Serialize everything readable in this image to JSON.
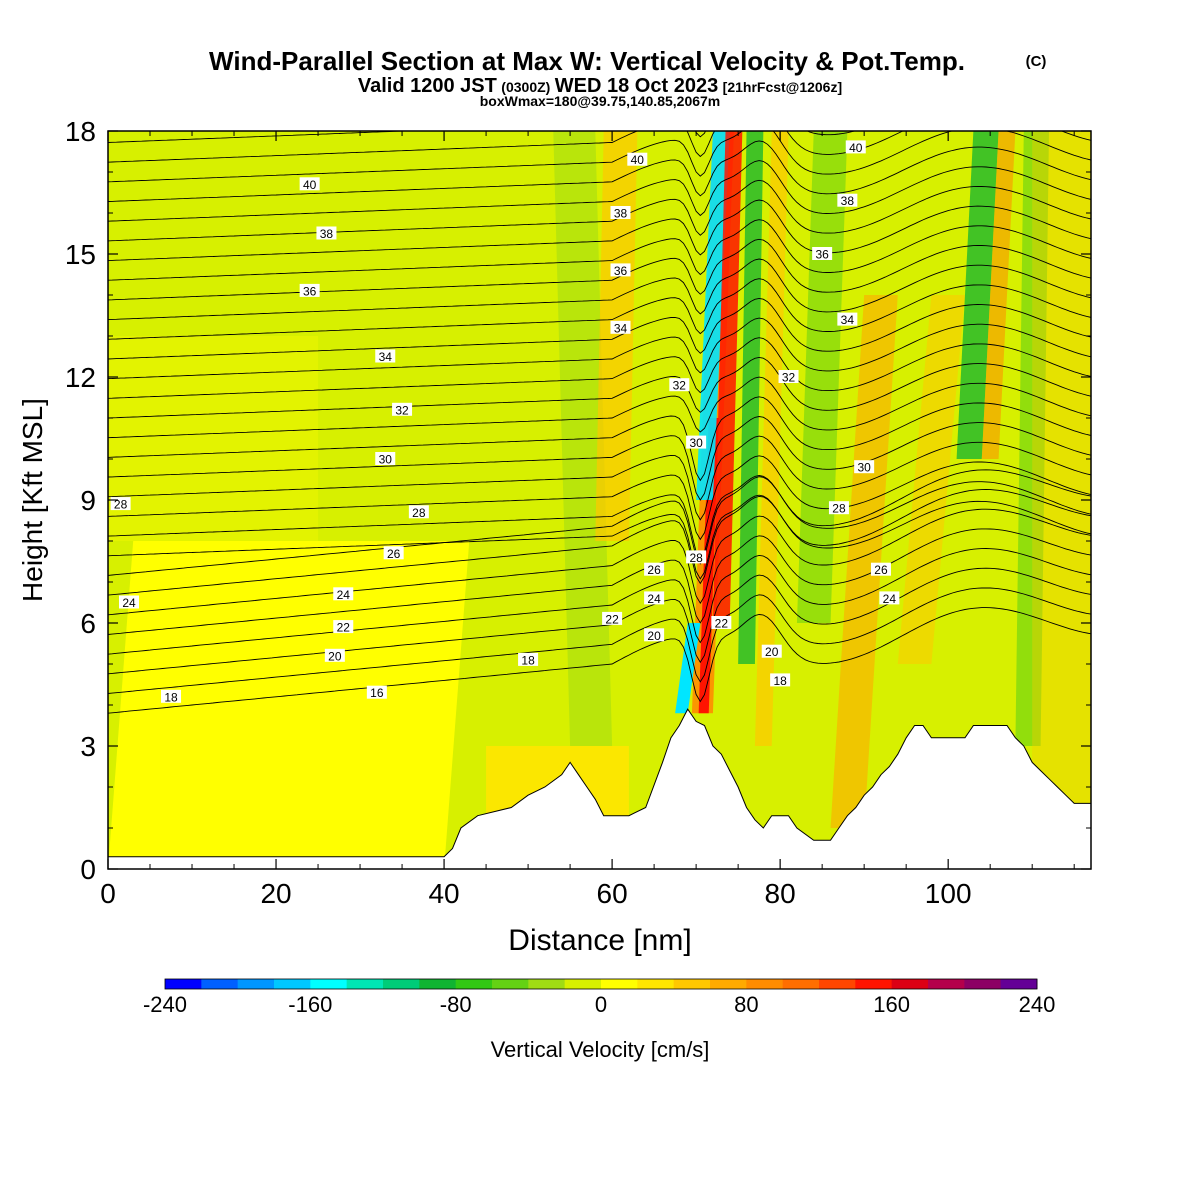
{
  "title": {
    "main": "Wind-Parallel Section at Max W: Vertical Velocity & Pot.Temp.",
    "copyright": "(C)",
    "line2_a": "Valid 1200 JST",
    "line2_b": "(0300Z)",
    "line2_c": "WED 18 Oct 2023",
    "line2_d": "[21hrFcst@1206z]",
    "line3": "boxWmax=180@39.75,140.85,2067m"
  },
  "chart_data": {
    "type": "heatmap",
    "xlabel": "Distance [nm]",
    "ylabel": "Height [Kft MSL]",
    "xlim": [
      0,
      117
    ],
    "ylim": [
      0,
      18
    ],
    "x_ticks": [
      0,
      20,
      40,
      60,
      80,
      100
    ],
    "y_ticks": [
      0,
      3,
      6,
      9,
      12,
      15,
      18
    ],
    "colorbar": {
      "label": "Vertical Velocity [cm/s]",
      "min": -240,
      "max": 240,
      "tick_values": [
        -240,
        -160,
        -80,
        0,
        80,
        160,
        240
      ],
      "tick_labels": [
        "-240",
        "-160",
        "-80",
        "0",
        "80",
        "160",
        "240"
      ],
      "colors": [
        "#0000ff",
        "#0060ff",
        "#0096ff",
        "#00c8ff",
        "#00ffff",
        "#00e6b4",
        "#00cc78",
        "#10b432",
        "#32c814",
        "#64d214",
        "#a0dc14",
        "#d7f000",
        "#ffff00",
        "#ffe600",
        "#ffc800",
        "#ffaa00",
        "#ff8c00",
        "#ff6e00",
        "#ff4600",
        "#ff1400",
        "#dc0014",
        "#b4004b",
        "#8c0064",
        "#640096"
      ]
    },
    "terrain_kft": {
      "x": [
        0,
        40,
        41,
        42,
        44,
        48,
        50,
        52,
        54,
        55,
        56,
        57,
        58,
        59,
        60,
        62,
        64,
        66,
        67,
        68,
        69,
        70,
        71,
        72,
        73,
        74,
        75,
        76,
        77,
        78,
        79,
        80,
        81,
        82,
        84,
        86,
        87,
        88,
        89,
        90,
        91,
        92,
        93,
        94,
        95,
        96,
        97,
        98,
        100,
        102,
        103,
        104,
        105,
        106,
        107,
        108,
        109,
        110,
        111,
        112,
        113,
        114,
        115,
        116,
        117
      ],
      "y": [
        0.3,
        0.3,
        0.5,
        1.0,
        1.3,
        1.5,
        1.8,
        2.0,
        2.3,
        2.6,
        2.3,
        2.0,
        1.7,
        1.3,
        1.3,
        1.3,
        1.5,
        2.6,
        3.2,
        3.5,
        3.9,
        3.6,
        3.5,
        3.0,
        2.8,
        2.4,
        2.0,
        1.5,
        1.2,
        1.0,
        1.3,
        1.3,
        1.3,
        1.0,
        0.7,
        0.7,
        1.0,
        1.3,
        1.5,
        1.8,
        2.0,
        2.3,
        2.5,
        2.8,
        3.2,
        3.5,
        3.5,
        3.2,
        3.2,
        3.2,
        3.5,
        3.5,
        3.5,
        3.5,
        3.5,
        3.2,
        3.0,
        2.6,
        2.4,
        2.2,
        2.0,
        1.8,
        1.6,
        1.6,
        1.6
      ]
    },
    "contour_labels": [
      {
        "x": 1.5,
        "y": 8.9,
        "text": "28"
      },
      {
        "x": 2.5,
        "y": 6.5,
        "text": "24"
      },
      {
        "x": 7.5,
        "y": 4.2,
        "text": "18"
      },
      {
        "x": 24,
        "y": 16.7,
        "text": "40"
      },
      {
        "x": 26,
        "y": 15.5,
        "text": "38"
      },
      {
        "x": 24,
        "y": 14.1,
        "text": "36"
      },
      {
        "x": 33,
        "y": 12.5,
        "text": "34"
      },
      {
        "x": 35,
        "y": 11.2,
        "text": "32"
      },
      {
        "x": 33,
        "y": 10.0,
        "text": "30"
      },
      {
        "x": 37,
        "y": 8.7,
        "text": "28"
      },
      {
        "x": 34,
        "y": 7.7,
        "text": "26"
      },
      {
        "x": 28,
        "y": 6.7,
        "text": "24"
      },
      {
        "x": 28,
        "y": 5.9,
        "text": "22"
      },
      {
        "x": 27,
        "y": 5.2,
        "text": "20"
      },
      {
        "x": 32,
        "y": 4.3,
        "text": "16"
      },
      {
        "x": 50,
        "y": 5.1,
        "text": "18"
      },
      {
        "x": 63,
        "y": 17.3,
        "text": "40"
      },
      {
        "x": 61,
        "y": 16.0,
        "text": "38"
      },
      {
        "x": 61,
        "y": 14.6,
        "text": "36"
      },
      {
        "x": 61,
        "y": 13.2,
        "text": "34"
      },
      {
        "x": 68,
        "y": 11.8,
        "text": "32"
      },
      {
        "x": 70,
        "y": 10.4,
        "text": "30"
      },
      {
        "x": 70,
        "y": 7.6,
        "text": "28"
      },
      {
        "x": 65,
        "y": 7.3,
        "text": "26"
      },
      {
        "x": 65,
        "y": 6.6,
        "text": "24"
      },
      {
        "x": 60,
        "y": 6.1,
        "text": "22"
      },
      {
        "x": 65,
        "y": 5.7,
        "text": "20"
      },
      {
        "x": 73,
        "y": 6.0,
        "text": "22"
      },
      {
        "x": 79,
        "y": 5.3,
        "text": "20"
      },
      {
        "x": 80,
        "y": 4.6,
        "text": "18"
      },
      {
        "x": 89,
        "y": 17.6,
        "text": "40"
      },
      {
        "x": 88,
        "y": 16.3,
        "text": "38"
      },
      {
        "x": 85,
        "y": 15.0,
        "text": "36"
      },
      {
        "x": 88,
        "y": 13.4,
        "text": "34"
      },
      {
        "x": 81,
        "y": 12.0,
        "text": "32"
      },
      {
        "x": 90,
        "y": 9.8,
        "text": "30"
      },
      {
        "x": 87,
        "y": 8.8,
        "text": "28"
      },
      {
        "x": 92,
        "y": 7.3,
        "text": "26"
      },
      {
        "x": 93,
        "y": 6.6,
        "text": "24"
      }
    ]
  }
}
